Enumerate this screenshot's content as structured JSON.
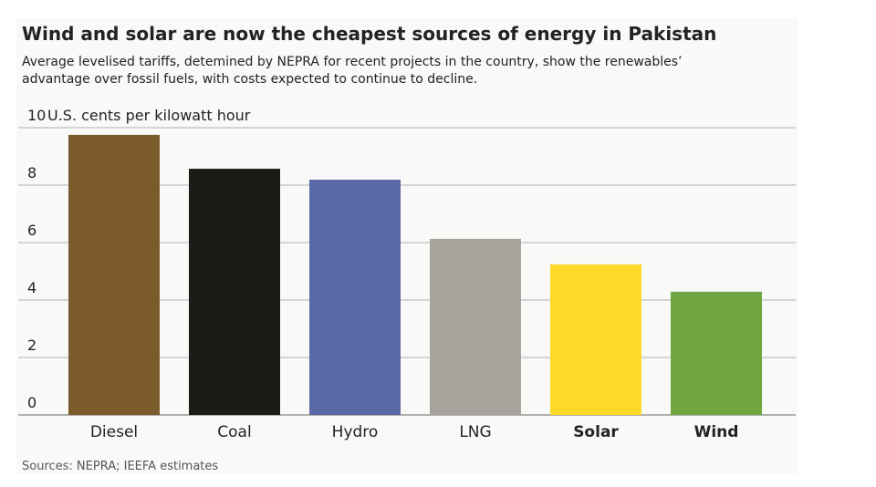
{
  "chart_data": {
    "type": "bar",
    "title": "Wind and solar are now the cheapest sources of energy in Pakistan",
    "subtitle": [
      "Average levelised tariffs, detemined by NEPRA for recent projects in the country, show the renewables’",
      "advantage over fossil fuels, with costs expected to continue to decline."
    ],
    "y_label": "U.S. cents per kilowatt hour",
    "source": "Sources: NEPRA; IEEFA estimates",
    "categories": [
      "Diesel",
      "Coal",
      "Hydro",
      "LNG",
      "Solar",
      "Wind"
    ],
    "label_bold": [
      false,
      false,
      false,
      false,
      true,
      true
    ],
    "values": [
      9.75,
      8.57,
      8.19,
      6.13,
      5.24,
      4.29
    ],
    "colors": [
      "#7b5b2b",
      "#1c1b18",
      "#5b68a6",
      "#a9a39d",
      "#fcda27",
      "#6fa641"
    ],
    "ylim": [
      0,
      10
    ],
    "yticks": [
      0,
      2,
      4,
      6,
      8,
      10
    ],
    "grid": true
  }
}
